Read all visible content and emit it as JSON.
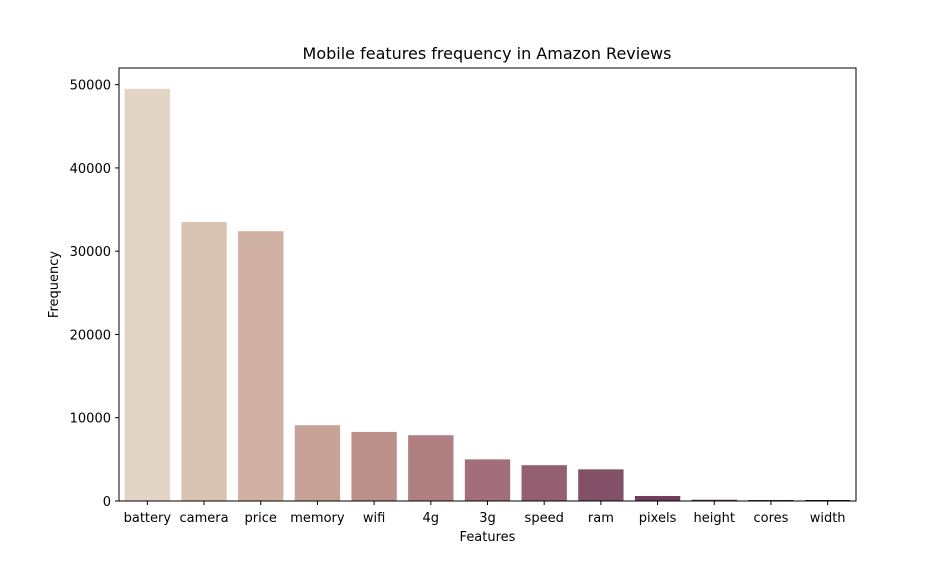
{
  "chart_data": {
    "type": "bar",
    "title": "Mobile features frequency in Amazon Reviews",
    "xlabel": "Features",
    "ylabel": "Frequency",
    "categories": [
      "battery",
      "camera",
      "price",
      "memory",
      "wifi",
      "4g",
      "3g",
      "speed",
      "ram",
      "pixels",
      "height",
      "cores",
      "width"
    ],
    "values": [
      49500,
      33500,
      32400,
      9100,
      8300,
      7900,
      5000,
      4300,
      3800,
      600,
      150,
      120,
      120
    ],
    "colors": [
      "#e2d5c6",
      "#d9c4b4",
      "#d0b1a3",
      "#c6a297",
      "#bc908a",
      "#b07f82",
      "#a36e7b",
      "#935f71",
      "#835167",
      "#6f3f5a",
      "#5b2f4c",
      "#472440",
      "#351a33"
    ],
    "yticks": [
      0,
      10000,
      20000,
      30000,
      40000,
      50000
    ],
    "ylim": [
      0,
      52000
    ],
    "grid": false,
    "legend": "none"
  }
}
